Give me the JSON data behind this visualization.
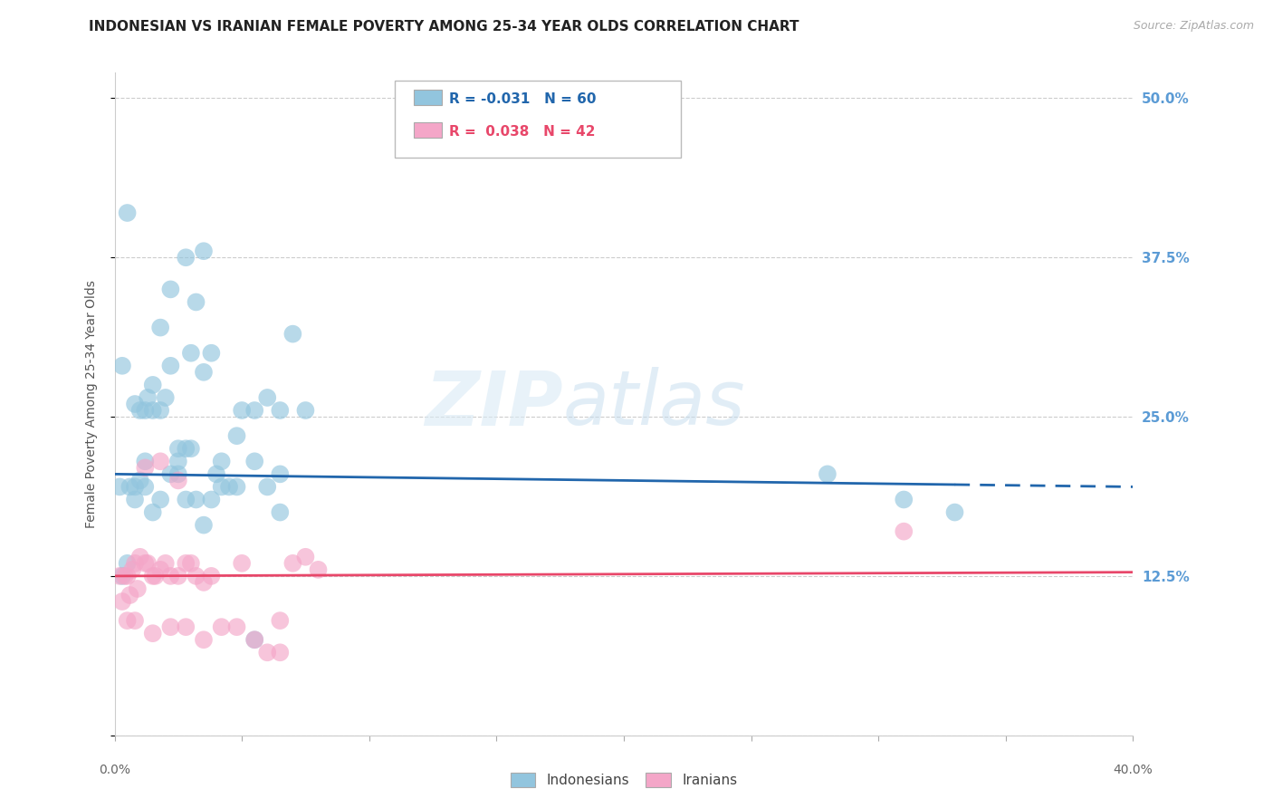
{
  "title": "INDONESIAN VS IRANIAN FEMALE POVERTY AMONG 25-34 YEAR OLDS CORRELATION CHART",
  "source": "Source: ZipAtlas.com",
  "ylabel": "Female Poverty Among 25-34 Year Olds",
  "blue_color": "#92c5de",
  "pink_color": "#f4a6c8",
  "blue_line_color": "#2166ac",
  "pink_line_color": "#e8476a",
  "watermark_zip": "ZIP",
  "watermark_atlas": "atlas",
  "xlim": [
    0.0,
    0.4
  ],
  "ylim": [
    0.0,
    0.52
  ],
  "yticks": [
    0.0,
    0.125,
    0.25,
    0.375,
    0.5
  ],
  "yticklabels": [
    "",
    "12.5%",
    "25.0%",
    "37.5%",
    "50.0%"
  ],
  "xtick_labels_show": [
    "0.0%",
    "40.0%"
  ],
  "legend_blue_text": "R = -0.031   N = 60",
  "legend_pink_text": "R =  0.038   N = 42",
  "bottom_legend_blue": "Indonesians",
  "bottom_legend_pink": "Iranians",
  "indonesians_x": [
    0.002,
    0.005,
    0.003,
    0.006,
    0.008,
    0.01,
    0.012,
    0.008,
    0.01,
    0.012,
    0.015,
    0.013,
    0.018,
    0.015,
    0.02,
    0.018,
    0.022,
    0.025,
    0.028,
    0.03,
    0.032,
    0.035,
    0.038,
    0.025,
    0.028,
    0.022,
    0.03,
    0.035,
    0.04,
    0.045,
    0.05,
    0.055,
    0.06,
    0.065,
    0.07,
    0.075,
    0.065,
    0.055,
    0.048,
    0.042,
    0.038,
    0.032,
    0.025,
    0.018,
    0.012,
    0.008,
    0.005,
    0.003,
    0.015,
    0.022,
    0.028,
    0.035,
    0.042,
    0.048,
    0.055,
    0.06,
    0.065,
    0.28,
    0.31,
    0.33
  ],
  "indonesians_y": [
    0.195,
    0.41,
    0.29,
    0.195,
    0.195,
    0.2,
    0.195,
    0.26,
    0.255,
    0.255,
    0.255,
    0.265,
    0.255,
    0.275,
    0.265,
    0.32,
    0.29,
    0.205,
    0.225,
    0.3,
    0.34,
    0.285,
    0.3,
    0.225,
    0.185,
    0.205,
    0.225,
    0.165,
    0.205,
    0.195,
    0.255,
    0.255,
    0.265,
    0.255,
    0.315,
    0.255,
    0.205,
    0.215,
    0.235,
    0.215,
    0.185,
    0.185,
    0.215,
    0.185,
    0.215,
    0.185,
    0.135,
    0.125,
    0.175,
    0.35,
    0.375,
    0.38,
    0.195,
    0.195,
    0.075,
    0.195,
    0.175,
    0.205,
    0.185,
    0.175
  ],
  "iranians_x": [
    0.002,
    0.004,
    0.006,
    0.003,
    0.005,
    0.007,
    0.009,
    0.008,
    0.012,
    0.015,
    0.01,
    0.013,
    0.016,
    0.018,
    0.02,
    0.022,
    0.025,
    0.028,
    0.03,
    0.032,
    0.035,
    0.038,
    0.025,
    0.018,
    0.012,
    0.008,
    0.005,
    0.015,
    0.022,
    0.028,
    0.035,
    0.042,
    0.048,
    0.055,
    0.06,
    0.065,
    0.07,
    0.075,
    0.08,
    0.065,
    0.05,
    0.31
  ],
  "iranians_y": [
    0.125,
    0.125,
    0.11,
    0.105,
    0.125,
    0.13,
    0.115,
    0.135,
    0.135,
    0.125,
    0.14,
    0.135,
    0.125,
    0.13,
    0.135,
    0.125,
    0.125,
    0.135,
    0.135,
    0.125,
    0.12,
    0.125,
    0.2,
    0.215,
    0.21,
    0.09,
    0.09,
    0.08,
    0.085,
    0.085,
    0.075,
    0.085,
    0.085,
    0.075,
    0.065,
    0.065,
    0.135,
    0.14,
    0.13,
    0.09,
    0.135,
    0.16
  ],
  "blue_trendline_x": [
    0.0,
    0.33,
    0.33,
    0.4
  ],
  "blue_trendline_style": [
    "solid",
    "solid",
    "dashed",
    "dashed"
  ],
  "blue_trendline_y_start": 0.205,
  "blue_trendline_y_end": 0.195,
  "pink_trendline_y_start": 0.125,
  "pink_trendline_y_end": 0.128
}
